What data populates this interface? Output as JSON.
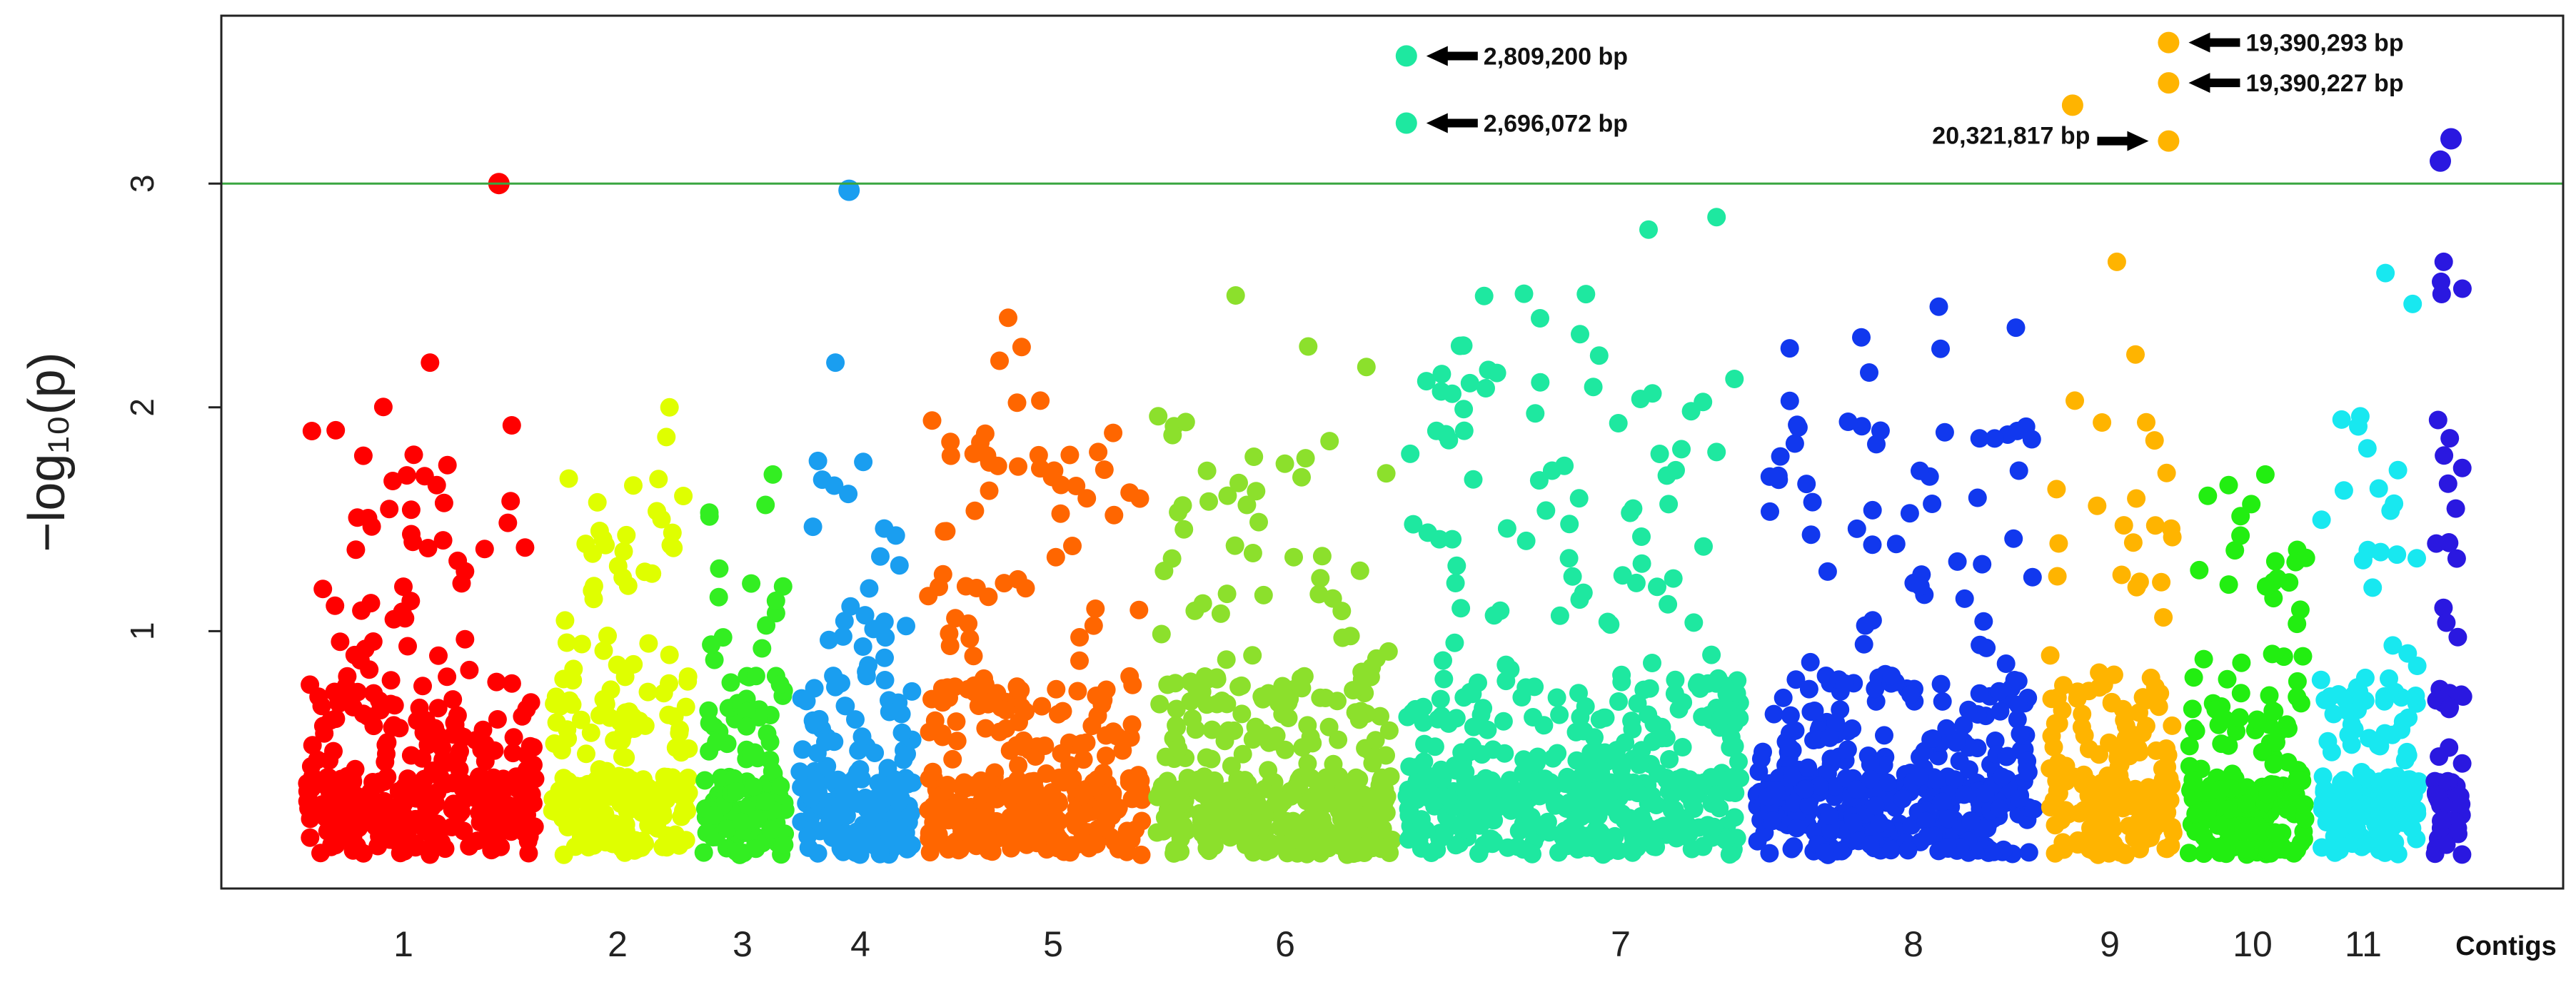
{
  "chart_data": {
    "type": "scatter",
    "ylabel": "−log₁₀(p)",
    "xlabel": "Contigs",
    "yticks": [
      "1",
      "2",
      "3"
    ],
    "ylim": [
      -0.15,
      3.75
    ],
    "threshold": 3.0,
    "threshold_color": "#3aa641",
    "grid": false,
    "legend": "none",
    "contigs": [
      {
        "label": "1",
        "colors": [
          "#ff0000"
        ],
        "max": 2.2
      },
      {
        "label": "2",
        "colors": [
          "#dfff00"
        ],
        "max": 2.0
      },
      {
        "label": "3",
        "colors": [
          "#33ee22"
        ],
        "max": 1.7
      },
      {
        "label": "4",
        "colors": [
          "#1a9ef0"
        ],
        "max": 2.2
      },
      {
        "label": "5",
        "colors": [
          "#ff6600"
        ],
        "max": 2.4
      },
      {
        "label": "6",
        "colors": [
          "#8ce02c"
        ],
        "max": 2.5
      },
      {
        "label": "7",
        "colors": [
          "#1ee8a0"
        ],
        "max": 2.85
      },
      {
        "label": "8",
        "colors": [
          "#1138ee"
        ],
        "max": 2.45
      },
      {
        "label": "9",
        "colors": [
          "#ffb400"
        ],
        "max": 2.65
      },
      {
        "label": "10",
        "colors": [
          "#22ee11"
        ],
        "max": 1.7
      },
      {
        "label": "11",
        "colors": [
          "#18e8f0"
        ],
        "max": 2.6
      },
      {
        "label": "",
        "colors": [
          "#2a18e0"
        ],
        "max": 2.65
      }
    ],
    "highlight_points": [
      {
        "contig": "1",
        "pos": 0.82,
        "y": 3.0
      },
      {
        "contig": "4",
        "pos": 0.44,
        "y": 2.97
      },
      {
        "contig": "7",
        "pos": 0.02,
        "y": 3.57,
        "label": "2,809,200 bp"
      },
      {
        "contig": "7",
        "pos": 0.02,
        "y": 3.27,
        "label": "2,696,072 bp"
      },
      {
        "contig": "9",
        "pos": 0.22,
        "y": 3.35
      },
      {
        "contig": "9",
        "pos": 0.91,
        "y": 3.63,
        "label": "19,390,293 bp"
      },
      {
        "contig": "9",
        "pos": 0.91,
        "y": 3.45,
        "label": "19,390,227 bp"
      },
      {
        "contig": "9",
        "pos": 0.91,
        "y": 3.19,
        "label": "20,321,817 bp"
      },
      {
        "contig": "",
        "pos": 0.3,
        "y": 3.1
      },
      {
        "contig": "",
        "pos": 0.55,
        "y": 3.2
      }
    ]
  }
}
